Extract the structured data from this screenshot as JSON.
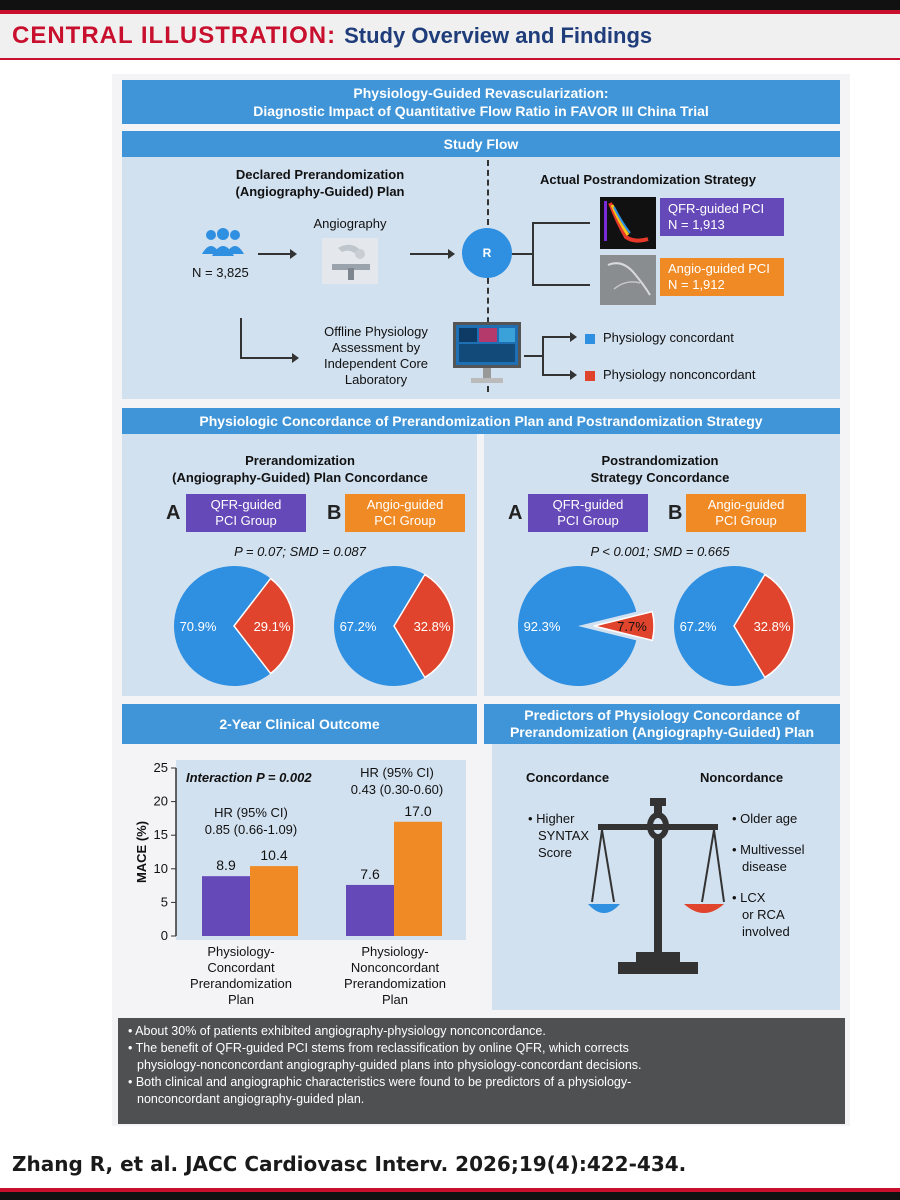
{
  "header": {
    "label": "CENTRAL ILLUSTRATION:",
    "title": "Study Overview and Findings"
  },
  "main_title": {
    "line1": "Physiology-Guided Revascularization:",
    "line2": "Diagnostic Impact of Quantitative Flow Ratio in FAVOR III China Trial"
  },
  "study_flow": {
    "banner": "Study Flow",
    "declared_l1": "Declared Prerandomization",
    "declared_l2": "(Angiography-Guided) Plan",
    "actual": "Actual Postrandomization Strategy",
    "n_total": "N = 3,825",
    "angiography": "Angiography",
    "r_label": "R",
    "qfr_pci": "QFR-guided PCI",
    "qfr_n": "N = 1,913",
    "angio_pci": "Angio-guided PCI",
    "angio_n": "N = 1,912",
    "offline_l1": "Offline Physiology",
    "offline_l2": "Assessment by",
    "offline_l3": "Independent Core",
    "offline_l4": "Laboratory",
    "concordant": "Physiology concordant",
    "nonconcordant": "Physiology nonconcordant",
    "colors": {
      "concordant": "#2f8fe0",
      "nonconcordant": "#e0442c"
    }
  },
  "concordance": {
    "banner": "Physiologic Concordance of Prerandomization Plan and Postrandomization Strategy",
    "left": {
      "title_l1": "Prerandomization",
      "title_l2": "(Angiography-Guided) Plan Concordance",
      "a_letter": "A",
      "b_letter": "B",
      "a_l1": "QFR-guided",
      "a_l2": "PCI Group",
      "b_l1": "Angio-guided",
      "b_l2": "PCI Group",
      "stat": "P = 0.07; SMD = 0.087"
    },
    "right": {
      "title_l1": "Postrandomization",
      "title_l2": "Strategy Concordance",
      "a_letter": "A",
      "b_letter": "B",
      "a_l1": "QFR-guided",
      "a_l2": "PCI Group",
      "b_l1": "Angio-guided",
      "b_l2": "PCI Group",
      "stat": "P < 0.001; SMD = 0.665"
    }
  },
  "outcome": {
    "banner": "2-Year Clinical Outcome",
    "interaction": "Interaction P = 0.002",
    "hr1_l1": "HR (95% CI)",
    "hr1_l2": "0.85 (0.66-1.09)",
    "hr2_l1": "HR (95% CI)",
    "hr2_l2": "0.43 (0.30-0.60)",
    "g1_l1": "Physiology-",
    "g1_l2": "Concordant",
    "g1_l3": "Prerandomization",
    "g1_l4": "Plan",
    "g2_l1": "Physiology-",
    "g2_l2": "Nonconcordant",
    "g2_l3": "Prerandomization",
    "g2_l4": "Plan"
  },
  "predictors": {
    "banner_l1": "Predictors of Physiology Concordance of",
    "banner_l2": "Prerandomization (Angiography-Guided) Plan",
    "concordance": "Concordance",
    "nonconcordance": "Noncordance",
    "left_l1": "• Higher",
    "left_l2": "SYNTAX",
    "left_l3": "Score",
    "r1": "• Older age",
    "r2_l1": "• Multivessel",
    "r2_l2": "disease",
    "r3_l1": "• LCX",
    "r3_l2": "or RCA",
    "r3_l3": "involved"
  },
  "summary": {
    "b1": "• About 30% of patients exhibited angiography-physiology nonconcordance.",
    "b2_l1": "• The benefit of QFR-guided PCI stems from reclassification by online QFR, which corrects",
    "b2_l2": "physiology-nonconcordant angiography-guided plans into physiology-concordant decisions.",
    "b3_l1": "• Both clinical and angiographic characteristics were found to be predictors of a physiology-",
    "b3_l2": "nonconcordant angiography-guided plan."
  },
  "citation": "Zhang R, et al. JACC Cardiovasc Interv. 2026;19(4):422-434.",
  "chart_data": [
    {
      "type": "pie",
      "title": "Prerandomization (Angiography-Guided) Plan Concordance — QFR-guided PCI Group",
      "slices": [
        {
          "label": "70.9%",
          "value": 70.9
        },
        {
          "label": "29.1%",
          "value": 29.1
        }
      ]
    },
    {
      "type": "pie",
      "title": "Prerandomization (Angiography-Guided) Plan Concordance — Angio-guided PCI Group",
      "slices": [
        {
          "label": "67.2%",
          "value": 67.2
        },
        {
          "label": "32.8%",
          "value": 32.8
        }
      ]
    },
    {
      "type": "pie",
      "title": "Postrandomization Strategy Concordance — QFR-guided PCI Group",
      "slices": [
        {
          "label": "92.3%",
          "value": 92.3
        },
        {
          "label": "7.7%",
          "value": 7.7
        }
      ]
    },
    {
      "type": "pie",
      "title": "Postrandomization Strategy Concordance — Angio-guided PCI Group",
      "slices": [
        {
          "label": "67.2%",
          "value": 67.2
        },
        {
          "label": "32.8%",
          "value": 32.8
        }
      ]
    },
    {
      "type": "bar",
      "title": "2-Year Clinical Outcome",
      "ylabel": "MACE (%)",
      "ylim": [
        0,
        25
      ],
      "yticks": [
        "0",
        "5",
        "10",
        "15",
        "20",
        "25"
      ],
      "categories": [
        "Physiology-Concordant Prerandomization Plan",
        "Physiology-Nonconcordant Prerandomization Plan"
      ],
      "series": [
        {
          "values": [
            8.9,
            7.6
          ],
          "labels": [
            "8.9",
            "7.6"
          ],
          "color": "#6549b8"
        },
        {
          "values": [
            10.4,
            17.0
          ],
          "labels": [
            "10.4",
            "17.0"
          ],
          "color": "#f08a24"
        }
      ]
    }
  ]
}
